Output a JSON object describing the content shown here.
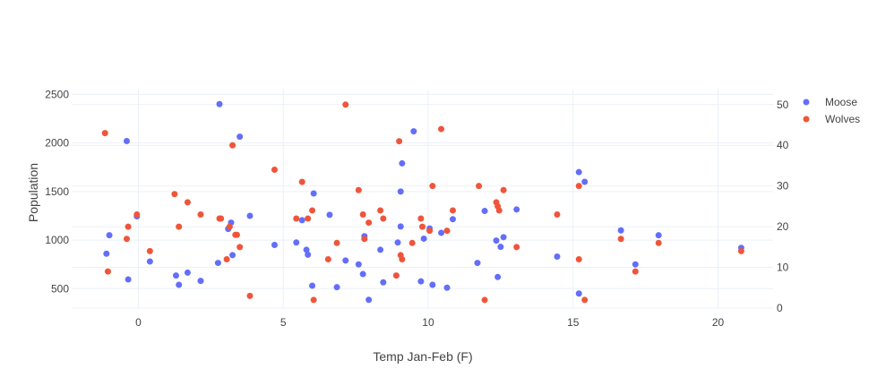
{
  "chart_data": {
    "type": "scatter",
    "title": "",
    "xlabel": "Temp Jan-Feb (F)",
    "ylabel": "Population",
    "y2label": "",
    "xlim": [
      -2.3,
      21.9
    ],
    "ylim": [
      300,
      2550
    ],
    "y2lim": [
      0,
      53.7
    ],
    "x_ticks": [
      0,
      5,
      10,
      15,
      20
    ],
    "y_ticks": [
      500,
      1000,
      1500,
      2000,
      2500
    ],
    "y2_ticks": [
      0,
      10,
      20,
      30,
      40,
      50
    ],
    "grid": true,
    "legend_position": "top-right",
    "series": [
      {
        "name": "Moose",
        "axis": "y",
        "color": "#636efa",
        "points": [
          [
            -1.1,
            860
          ],
          [
            -1.0,
            1050
          ],
          [
            -0.4,
            2020
          ],
          [
            -0.35,
            595
          ],
          [
            -0.05,
            1245
          ],
          [
            0.4,
            780
          ],
          [
            1.3,
            635
          ],
          [
            1.4,
            540
          ],
          [
            1.7,
            665
          ],
          [
            2.15,
            580
          ],
          [
            2.75,
            765
          ],
          [
            2.8,
            2400
          ],
          [
            3.1,
            1115
          ],
          [
            3.2,
            1180
          ],
          [
            3.25,
            845
          ],
          [
            3.5,
            2065
          ],
          [
            3.85,
            1250
          ],
          [
            4.7,
            950
          ],
          [
            5.45,
            975
          ],
          [
            5.65,
            1205
          ],
          [
            5.8,
            900
          ],
          [
            5.85,
            850
          ],
          [
            6.0,
            530
          ],
          [
            6.05,
            1480
          ],
          [
            6.6,
            1260
          ],
          [
            6.85,
            515
          ],
          [
            7.15,
            790
          ],
          [
            7.6,
            750
          ],
          [
            7.75,
            650
          ],
          [
            7.8,
            1040
          ],
          [
            7.95,
            385
          ],
          [
            8.35,
            900
          ],
          [
            8.45,
            565
          ],
          [
            8.95,
            975
          ],
          [
            9.05,
            1500
          ],
          [
            9.05,
            1140
          ],
          [
            9.1,
            1790
          ],
          [
            9.5,
            2120
          ],
          [
            9.75,
            575
          ],
          [
            9.85,
            1015
          ],
          [
            10.05,
            1120
          ],
          [
            10.15,
            540
          ],
          [
            10.45,
            1075
          ],
          [
            10.65,
            510
          ],
          [
            10.85,
            1215
          ],
          [
            11.7,
            765
          ],
          [
            11.95,
            1300
          ],
          [
            12.35,
            995
          ],
          [
            12.4,
            620
          ],
          [
            12.5,
            930
          ],
          [
            12.6,
            1030
          ],
          [
            13.05,
            1315
          ],
          [
            14.45,
            830
          ],
          [
            15.2,
            450
          ],
          [
            15.2,
            1700
          ],
          [
            15.4,
            1600
          ],
          [
            16.65,
            1100
          ],
          [
            17.15,
            750
          ],
          [
            17.95,
            1050
          ],
          [
            20.8,
            920
          ]
        ]
      },
      {
        "name": "Wolves",
        "axis": "y2",
        "color": "#ef553b",
        "points": [
          [
            -1.15,
            43
          ],
          [
            -1.05,
            9
          ],
          [
            -0.4,
            17
          ],
          [
            -0.35,
            20
          ],
          [
            -0.05,
            23
          ],
          [
            0.4,
            14
          ],
          [
            1.25,
            28
          ],
          [
            1.4,
            20
          ],
          [
            1.7,
            26
          ],
          [
            2.15,
            23
          ],
          [
            2.8,
            22
          ],
          [
            2.85,
            22
          ],
          [
            3.05,
            12
          ],
          [
            3.15,
            20
          ],
          [
            3.25,
            40
          ],
          [
            3.35,
            18
          ],
          [
            3.4,
            18
          ],
          [
            3.5,
            15
          ],
          [
            3.85,
            3
          ],
          [
            4.7,
            34
          ],
          [
            5.45,
            22
          ],
          [
            5.65,
            31
          ],
          [
            5.85,
            22
          ],
          [
            6.0,
            24
          ],
          [
            6.05,
            2
          ],
          [
            6.55,
            12
          ],
          [
            6.85,
            16
          ],
          [
            7.15,
            50
          ],
          [
            7.6,
            29
          ],
          [
            7.75,
            23
          ],
          [
            7.8,
            17
          ],
          [
            7.95,
            21
          ],
          [
            8.35,
            24
          ],
          [
            8.45,
            22
          ],
          [
            8.9,
            8
          ],
          [
            9.0,
            41
          ],
          [
            9.05,
            13
          ],
          [
            9.1,
            12
          ],
          [
            9.45,
            16
          ],
          [
            9.75,
            22
          ],
          [
            9.8,
            20
          ],
          [
            10.05,
            19
          ],
          [
            10.15,
            30
          ],
          [
            10.45,
            44
          ],
          [
            10.65,
            19
          ],
          [
            10.85,
            24
          ],
          [
            11.75,
            30
          ],
          [
            11.95,
            2
          ],
          [
            12.35,
            26
          ],
          [
            12.4,
            25
          ],
          [
            12.45,
            24
          ],
          [
            12.6,
            29
          ],
          [
            13.05,
            15
          ],
          [
            14.45,
            23
          ],
          [
            15.2,
            30
          ],
          [
            15.2,
            12
          ],
          [
            15.4,
            2
          ],
          [
            16.65,
            17
          ],
          [
            17.15,
            9
          ],
          [
            17.95,
            16
          ],
          [
            20.8,
            14
          ]
        ]
      }
    ]
  }
}
